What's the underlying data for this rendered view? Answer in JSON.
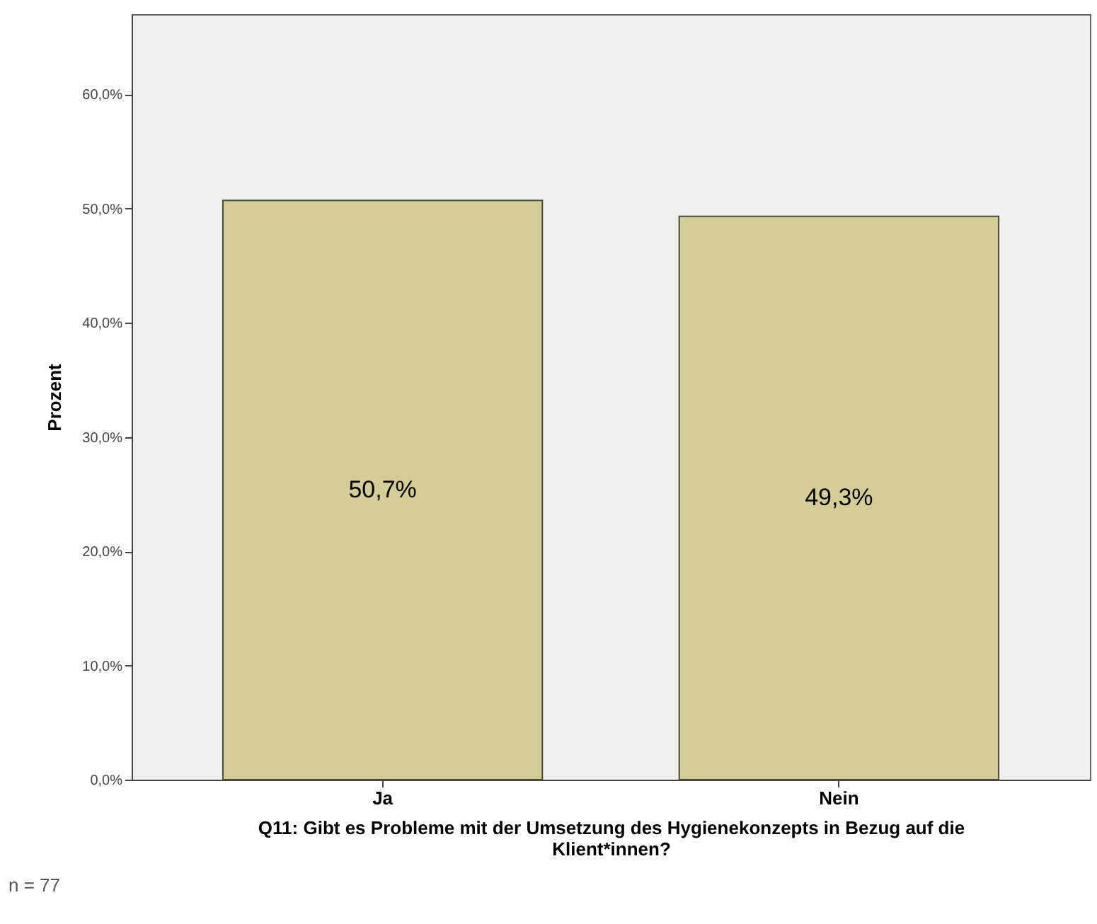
{
  "chart_data": {
    "type": "bar",
    "xlabel": "Q11: Gibt es Probleme mit der Umsetzung des Hygienekonzepts in Bezug auf die Klient*innen?",
    "ylabel": "Prozent",
    "categories": [
      "Ja",
      "Nein"
    ],
    "values": [
      50.7,
      49.3
    ],
    "color": "#d3cd97",
    "value_labels": [
      "50,7%",
      "49,3%"
    ],
    "ylim": [
      0,
      67
    ],
    "yticks": [
      {
        "value": 0,
        "label": "0,0%"
      },
      {
        "value": 10,
        "label": "10,0%"
      },
      {
        "value": 20,
        "label": "20,0%"
      },
      {
        "value": 30,
        "label": "30,0%"
      },
      {
        "value": 40,
        "label": "40,0%"
      },
      {
        "value": 50,
        "label": "50,0%"
      },
      {
        "value": 60,
        "label": "60,0%"
      }
    ],
    "annotations": [
      "n = 77"
    ]
  }
}
